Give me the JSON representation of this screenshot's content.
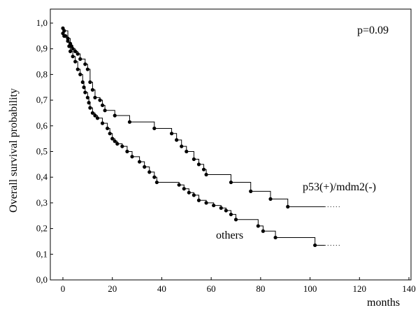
{
  "chart_data": {
    "type": "line",
    "title": "",
    "xlabel": "months",
    "ylabel": "Overall survival probability",
    "xlim": [
      0,
      140
    ],
    "ylim": [
      0,
      1.0
    ],
    "x_ticks": [
      0,
      20,
      40,
      60,
      80,
      100,
      120,
      140
    ],
    "x_tick_labels": [
      "0",
      "20",
      "40",
      "60",
      "80",
      "100",
      "120",
      "140"
    ],
    "y_ticks": [
      0,
      0.1,
      0.2,
      0.3,
      0.4,
      0.5,
      0.6,
      0.7,
      0.8,
      0.9,
      1.0
    ],
    "y_tick_labels": [
      "0,0",
      "0,1",
      "0,2",
      "0,3",
      "0,4",
      "0,5",
      "0,6",
      "0,7",
      "0,8",
      "0,9",
      "1,0"
    ],
    "grid": false,
    "annotations": {
      "pvalue": "p=0.09",
      "series_a_label": "p53(+)/mdm2(-)",
      "series_b_label": "others"
    },
    "series": [
      {
        "name": "p53(+)/mdm2(-)",
        "step": true,
        "censor_dots": true,
        "tail_end_x": 112,
        "points": [
          [
            0,
            0.98
          ],
          [
            0.5,
            0.97
          ],
          [
            2,
            0.94
          ],
          [
            3,
            0.92
          ],
          [
            3.5,
            0.91
          ],
          [
            4,
            0.9
          ],
          [
            5,
            0.89
          ],
          [
            6,
            0.88
          ],
          [
            7,
            0.86
          ],
          [
            9,
            0.84
          ],
          [
            10,
            0.82
          ],
          [
            11,
            0.77
          ],
          [
            12,
            0.74
          ],
          [
            13,
            0.71
          ],
          [
            15,
            0.7
          ],
          [
            16,
            0.68
          ],
          [
            17,
            0.66
          ],
          [
            21,
            0.64
          ],
          [
            27,
            0.615
          ],
          [
            37,
            0.59
          ],
          [
            44,
            0.57
          ],
          [
            46,
            0.545
          ],
          [
            48,
            0.52
          ],
          [
            50,
            0.5
          ],
          [
            53,
            0.47
          ],
          [
            55,
            0.45
          ],
          [
            57,
            0.43
          ],
          [
            58,
            0.41
          ],
          [
            68,
            0.38
          ],
          [
            76,
            0.345
          ],
          [
            84,
            0.315
          ],
          [
            91,
            0.285
          ]
        ]
      },
      {
        "name": "others",
        "step": true,
        "censor_dots": true,
        "tail_end_x": 112,
        "points": [
          [
            0,
            0.96
          ],
          [
            0.5,
            0.95
          ],
          [
            1,
            0.95
          ],
          [
            2,
            0.93
          ],
          [
            2.5,
            0.91
          ],
          [
            3,
            0.89
          ],
          [
            4,
            0.87
          ],
          [
            5,
            0.85
          ],
          [
            6,
            0.82
          ],
          [
            7,
            0.8
          ],
          [
            8,
            0.77
          ],
          [
            8.5,
            0.75
          ],
          [
            9,
            0.73
          ],
          [
            10,
            0.71
          ],
          [
            10.5,
            0.69
          ],
          [
            11,
            0.67
          ],
          [
            12,
            0.65
          ],
          [
            13,
            0.64
          ],
          [
            14,
            0.63
          ],
          [
            16,
            0.61
          ],
          [
            18,
            0.59
          ],
          [
            19,
            0.57
          ],
          [
            20,
            0.55
          ],
          [
            21,
            0.54
          ],
          [
            22,
            0.53
          ],
          [
            24,
            0.52
          ],
          [
            26,
            0.5
          ],
          [
            28,
            0.48
          ],
          [
            31,
            0.46
          ],
          [
            33,
            0.44
          ],
          [
            35,
            0.42
          ],
          [
            37,
            0.4
          ],
          [
            38,
            0.38
          ],
          [
            47,
            0.37
          ],
          [
            49,
            0.355
          ],
          [
            51,
            0.34
          ],
          [
            53,
            0.33
          ],
          [
            55,
            0.31
          ],
          [
            58,
            0.3
          ],
          [
            61,
            0.29
          ],
          [
            64,
            0.28
          ],
          [
            66,
            0.27
          ],
          [
            68,
            0.255
          ],
          [
            70,
            0.235
          ],
          [
            79,
            0.21
          ],
          [
            81,
            0.19
          ],
          [
            86,
            0.165
          ],
          [
            102,
            0.135
          ]
        ]
      }
    ]
  }
}
